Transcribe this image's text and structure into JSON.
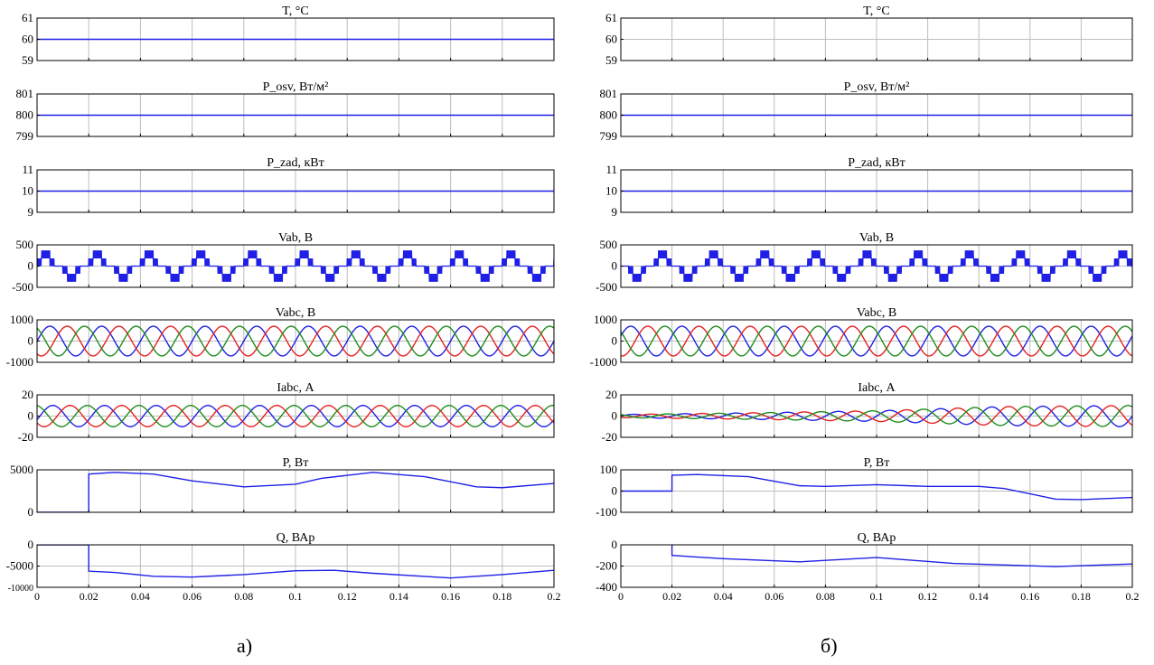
{
  "colors": {
    "blue": "#1f1fe6",
    "red": "#e62020",
    "green": "#1e8c1e",
    "grid": "#bdbdbd",
    "frame": "#000000"
  },
  "panel_labels": [
    "а)",
    "б)"
  ],
  "chart_data": [
    {
      "panel": "а)",
      "xlim": [
        0,
        0.2
      ],
      "xticks": [
        0,
        0.02,
        0.04,
        0.06,
        0.08,
        0.1,
        0.12,
        0.14,
        0.16,
        0.18,
        0.2
      ],
      "xtick_labels": [
        "0",
        "0.02",
        "0.04",
        "0.06",
        "0.08",
        "0.1",
        "0.12",
        "0.14",
        "0.16",
        "0.18",
        "0.2"
      ],
      "subplots": [
        {
          "type": "line",
          "title": "T, °C",
          "ylim": [
            59,
            61
          ],
          "yticks": [
            59,
            60,
            61
          ],
          "ytick_labels": [
            "59",
            "60",
            "61"
          ],
          "series": [
            {
              "kind": "constant",
              "value": 60,
              "color": "blue"
            }
          ]
        },
        {
          "type": "line",
          "title": "P_osv, Вт/м²",
          "ylim": [
            799,
            801
          ],
          "yticks": [
            799,
            800,
            801
          ],
          "ytick_labels": [
            "799",
            "800",
            "801"
          ],
          "series": [
            {
              "kind": "constant",
              "value": 800,
              "color": "blue"
            }
          ]
        },
        {
          "type": "line",
          "title": "P_zad, кВт",
          "ylim": [
            9,
            11
          ],
          "yticks": [
            9,
            10,
            11
          ],
          "ytick_labels": [
            "9",
            "10",
            "11"
          ],
          "series": [
            {
              "kind": "constant",
              "value": 10,
              "color": "blue"
            }
          ]
        },
        {
          "type": "line",
          "title": "Vab, В",
          "ylim": [
            -500,
            500
          ],
          "yticks": [
            -500,
            0,
            500
          ],
          "ytick_labels": [
            "-500",
            "0",
            "500"
          ],
          "series": [
            {
              "kind": "pwm",
              "frequency": 50,
              "levels": [
                0,
                180,
                370
              ],
              "phase": 0,
              "color": "blue"
            }
          ]
        },
        {
          "type": "line",
          "title": "Vabc, В",
          "ylim": [
            -1000,
            1000
          ],
          "yticks": [
            -1000,
            0,
            1000
          ],
          "ytick_labels": [
            "-1000",
            "0",
            "1000"
          ],
          "series": [
            {
              "kind": "sine",
              "amplitude": 700,
              "frequency": 50,
              "phase_deg": 0,
              "color": "blue"
            },
            {
              "kind": "sine",
              "amplitude": 700,
              "frequency": 50,
              "phase_deg": -120,
              "color": "red"
            },
            {
              "kind": "sine",
              "amplitude": 700,
              "frequency": 50,
              "phase_deg": 120,
              "color": "green"
            }
          ]
        },
        {
          "type": "line",
          "title": "Iabc, А",
          "ylim": [
            -20,
            20
          ],
          "yticks": [
            -20,
            0,
            20
          ],
          "ytick_labels": [
            "-20",
            "0",
            "20"
          ],
          "series": [
            {
              "kind": "sine",
              "amplitude": 10,
              "frequency": 50,
              "phase_deg": -20,
              "color": "blue"
            },
            {
              "kind": "sine",
              "amplitude": 10,
              "frequency": 50,
              "phase_deg": -140,
              "color": "red"
            },
            {
              "kind": "sine",
              "amplitude": 10,
              "frequency": 50,
              "phase_deg": 100,
              "color": "green"
            }
          ]
        },
        {
          "type": "line",
          "title": "P, Вт",
          "ylim": [
            0,
            5000
          ],
          "yticks": [
            0,
            5000
          ],
          "ytick_labels": [
            "0",
            "5000"
          ],
          "series": [
            {
              "kind": "points",
              "color": "blue",
              "x": [
                0,
                0.02,
                0.02,
                0.03,
                0.045,
                0.06,
                0.08,
                0.1,
                0.11,
                0.13,
                0.15,
                0.17,
                0.18,
                0.2
              ],
              "y": [
                0,
                0,
                4500,
                4700,
                4500,
                3700,
                3000,
                3300,
                4000,
                4700,
                4200,
                3000,
                2900,
                3400
              ]
            }
          ]
        },
        {
          "type": "line",
          "title": "Q, ВАр",
          "ylim": [
            -10000,
            0
          ],
          "yticks": [
            -10000,
            -5000,
            0
          ],
          "ytick_labels": [
            "-10000",
            "-5000",
            "0"
          ],
          "series": [
            {
              "kind": "points",
              "color": "blue",
              "x": [
                0,
                0.02,
                0.02,
                0.03,
                0.045,
                0.06,
                0.08,
                0.1,
                0.115,
                0.13,
                0.16,
                0.18,
                0.2
              ],
              "y": [
                0,
                0,
                -6200,
                -6500,
                -7400,
                -7600,
                -7000,
                -6100,
                -6000,
                -6700,
                -7800,
                -7000,
                -6000
              ]
            }
          ]
        }
      ]
    },
    {
      "panel": "б)",
      "xlim": [
        0,
        0.2
      ],
      "xticks": [
        0,
        0.02,
        0.04,
        0.06,
        0.08,
        0.1,
        0.12,
        0.14,
        0.16,
        0.18,
        0.2
      ],
      "xtick_labels": [
        "0",
        "0.02",
        "0.04",
        "0.06",
        "0.08",
        "0.1",
        "0.12",
        "0.14",
        "0.16",
        "0.18",
        "0.2"
      ],
      "subplots": [
        {
          "type": "line",
          "title": "T, °C",
          "ylim": [
            59,
            61
          ],
          "yticks": [
            59,
            60,
            61
          ],
          "ytick_labels": [
            "59",
            "60",
            "61"
          ],
          "series": []
        },
        {
          "type": "line",
          "title": "P_osv, Вт/м²",
          "ylim": [
            799,
            801
          ],
          "yticks": [
            799,
            800,
            801
          ],
          "ytick_labels": [
            "799",
            "800",
            "801"
          ],
          "series": [
            {
              "kind": "constant",
              "value": 800,
              "color": "blue"
            }
          ]
        },
        {
          "type": "line",
          "title": "P_zad, кВт",
          "ylim": [
            9,
            11
          ],
          "yticks": [
            9,
            10,
            11
          ],
          "ytick_labels": [
            "9",
            "10",
            "11"
          ],
          "series": [
            {
              "kind": "constant",
              "value": 10,
              "color": "blue"
            }
          ]
        },
        {
          "type": "line",
          "title": "Vab, В",
          "ylim": [
            -500,
            500
          ],
          "yticks": [
            -500,
            0,
            500
          ],
          "ytick_labels": [
            "-500",
            "0",
            "500"
          ],
          "series": [
            {
              "kind": "pwm",
              "frequency": 50,
              "levels": [
                0,
                180,
                370
              ],
              "phase": 0.35,
              "color": "blue"
            }
          ]
        },
        {
          "type": "line",
          "title": "Vabc, В",
          "ylim": [
            -1000,
            1000
          ],
          "yticks": [
            -1000,
            0,
            1000
          ],
          "ytick_labels": [
            "-1000",
            "0",
            "1000"
          ],
          "series": [
            {
              "kind": "sine",
              "amplitude": 700,
              "frequency": 50,
              "phase_deg": 20,
              "color": "blue"
            },
            {
              "kind": "sine",
              "amplitude": 700,
              "frequency": 50,
              "phase_deg": -100,
              "color": "red"
            },
            {
              "kind": "sine",
              "amplitude": 700,
              "frequency": 50,
              "phase_deg": 140,
              "color": "green"
            }
          ]
        },
        {
          "type": "line",
          "title": "Iabc, А",
          "ylim": [
            -20,
            20
          ],
          "yticks": [
            -20,
            0,
            20
          ],
          "ytick_labels": [
            "-20",
            "0",
            "20"
          ],
          "series": [
            {
              "kind": "sine_env",
              "frequency": 50,
              "phase_deg": 0,
              "color": "blue",
              "env_x": [
                0,
                0.05,
                0.1,
                0.15,
                0.2
              ],
              "env_a": [
                1.5,
                3,
                5,
                9,
                10
              ]
            },
            {
              "kind": "sine_env",
              "frequency": 50,
              "phase_deg": -120,
              "color": "red",
              "env_x": [
                0,
                0.05,
                0.1,
                0.15,
                0.2
              ],
              "env_a": [
                1.5,
                3,
                5,
                9,
                10
              ]
            },
            {
              "kind": "sine_env",
              "frequency": 50,
              "phase_deg": 120,
              "color": "green",
              "env_x": [
                0,
                0.05,
                0.1,
                0.15,
                0.2
              ],
              "env_a": [
                1.5,
                3,
                5,
                9,
                10
              ]
            }
          ]
        },
        {
          "type": "line",
          "title": "P, Вт",
          "ylim": [
            -100,
            100
          ],
          "yticks": [
            -100,
            0,
            100
          ],
          "ytick_labels": [
            "-100",
            "0",
            "100"
          ],
          "series": [
            {
              "kind": "points",
              "color": "blue",
              "x": [
                0,
                0.02,
                0.02,
                0.03,
                0.05,
                0.07,
                0.08,
                0.1,
                0.12,
                0.14,
                0.15,
                0.17,
                0.18,
                0.2
              ],
              "y": [
                0,
                0,
                75,
                78,
                68,
                25,
                22,
                30,
                22,
                22,
                12,
                -38,
                -40,
                -30
              ]
            }
          ]
        },
        {
          "type": "line",
          "title": "Q, ВАр",
          "ylim": [
            -400,
            0
          ],
          "yticks": [
            -400,
            -200,
            0
          ],
          "ytick_labels": [
            "-400",
            "-200",
            "0"
          ],
          "series": [
            {
              "kind": "points",
              "color": "blue",
              "x": [
                0,
                0.02,
                0.02,
                0.04,
                0.07,
                0.1,
                0.13,
                0.15,
                0.17,
                0.2
              ],
              "y": [
                60,
                60,
                -100,
                -130,
                -160,
                -120,
                -175,
                -190,
                -205,
                -180
              ]
            }
          ]
        }
      ]
    }
  ]
}
